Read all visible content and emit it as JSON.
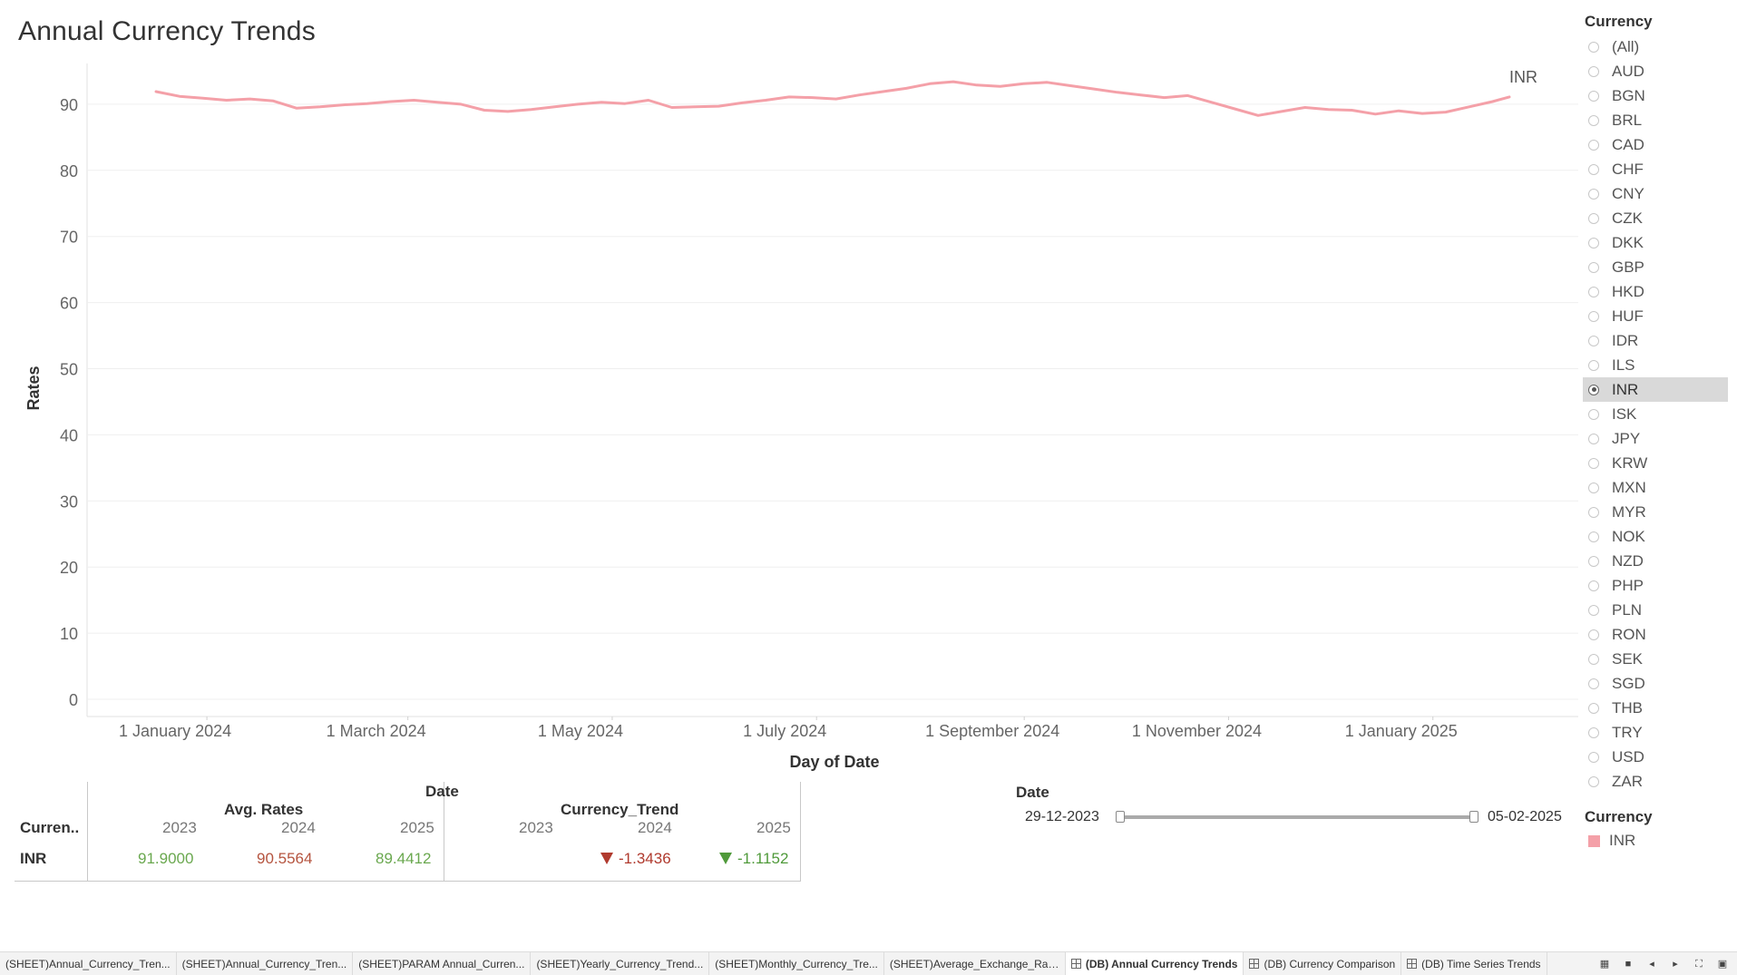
{
  "title": "Annual Currency Trends",
  "chart_data": {
    "type": "line",
    "title": "Annual Currency Trends",
    "xlabel": "Day of Date",
    "ylabel": "Rates",
    "x_tick_labels": [
      "1 January 2024",
      "1 March 2024",
      "1 May 2024",
      "1 July 2024",
      "1 September 2024",
      "1 November 2024",
      "1 January 2025"
    ],
    "x_tick_dates": [
      "2024-01-01",
      "2024-03-01",
      "2024-05-01",
      "2024-07-01",
      "2024-09-01",
      "2024-11-01",
      "2025-01-01"
    ],
    "x_range": [
      "2023-12-29",
      "2025-02-05"
    ],
    "y_ticks": [
      0,
      10,
      20,
      30,
      40,
      50,
      60,
      70,
      80,
      90
    ],
    "ylim": [
      0,
      95
    ],
    "grid": true,
    "series": [
      {
        "name": "INR",
        "color": "#f4a0a8",
        "x": [
          "2023-12-29",
          "2024-01-05",
          "2024-01-12",
          "2024-01-19",
          "2024-01-26",
          "2024-02-02",
          "2024-02-09",
          "2024-02-16",
          "2024-02-23",
          "2024-03-01",
          "2024-03-08",
          "2024-03-15",
          "2024-03-22",
          "2024-03-29",
          "2024-04-05",
          "2024-04-12",
          "2024-04-19",
          "2024-04-26",
          "2024-05-03",
          "2024-05-10",
          "2024-05-17",
          "2024-05-24",
          "2024-05-31",
          "2024-06-07",
          "2024-06-14",
          "2024-06-21",
          "2024-06-28",
          "2024-07-05",
          "2024-07-12",
          "2024-07-19",
          "2024-07-26",
          "2024-08-02",
          "2024-08-09",
          "2024-08-16",
          "2024-08-23",
          "2024-08-30",
          "2024-09-06",
          "2024-09-13",
          "2024-09-20",
          "2024-09-27",
          "2024-10-04",
          "2024-10-11",
          "2024-10-18",
          "2024-10-25",
          "2024-11-01",
          "2024-11-08",
          "2024-11-15",
          "2024-11-22",
          "2024-11-29",
          "2024-12-06",
          "2024-12-13",
          "2024-12-20",
          "2024-12-27",
          "2025-01-03",
          "2025-01-10",
          "2025-01-17",
          "2025-01-24",
          "2025-01-31",
          "2025-02-05"
        ],
        "values": [
          91.9,
          91.2,
          90.9,
          90.6,
          90.8,
          90.5,
          89.4,
          89.6,
          89.9,
          90.1,
          90.4,
          90.6,
          90.3,
          90.0,
          89.1,
          88.9,
          89.2,
          89.6,
          90.0,
          90.3,
          90.1,
          90.6,
          89.5,
          89.6,
          89.7,
          90.2,
          90.6,
          91.1,
          91.0,
          90.8,
          91.4,
          91.9,
          92.4,
          93.1,
          93.4,
          92.9,
          92.7,
          93.1,
          93.3,
          92.8,
          92.3,
          91.8,
          91.4,
          91.0,
          91.3,
          90.3,
          89.3,
          88.3,
          88.9,
          89.5,
          89.2,
          89.1,
          88.5,
          89.0,
          88.6,
          88.8,
          89.6,
          90.4,
          91.1
        ]
      }
    ],
    "end_label": "INR"
  },
  "filters": {
    "currency_heading": "Currency",
    "currency_options": [
      "(All)",
      "AUD",
      "BGN",
      "BRL",
      "CAD",
      "CHF",
      "CNY",
      "CZK",
      "DKK",
      "GBP",
      "HKD",
      "HUF",
      "IDR",
      "ILS",
      "INR",
      "ISK",
      "JPY",
      "KRW",
      "MXN",
      "MYR",
      "NOK",
      "NZD",
      "PHP",
      "PLN",
      "RON",
      "SEK",
      "SGD",
      "THB",
      "TRY",
      "USD",
      "ZAR"
    ],
    "selected": "INR",
    "date_heading": "Date",
    "date_start": "29-12-2023",
    "date_end": "05-02-2025"
  },
  "legend": {
    "heading": "Currency",
    "items": [
      {
        "label": "INR",
        "color": "#f4a0a8"
      }
    ]
  },
  "crosstab": {
    "date_header": "Date",
    "group_avg": "Avg. Rates",
    "group_trend": "Currency_Trend",
    "row_header": "Curren..",
    "years": [
      "2023",
      "2024",
      "2025"
    ],
    "row_label": "INR",
    "avg_values": [
      "91.9000",
      "90.5564",
      "89.4412"
    ],
    "avg_colors": [
      "#6aa84f",
      "#b5543f",
      "#6aa84f"
    ],
    "trend_values": [
      "",
      "-1.3436",
      "-1.1152"
    ],
    "trend_colors": [
      "",
      "#b03a2e",
      "#4f9a3a"
    ]
  },
  "tabs": [
    {
      "label": "(SHEET)Annual_Currency_Tren...",
      "active": false
    },
    {
      "label": "(SHEET)Annual_Currency_Tren...",
      "active": false
    },
    {
      "label": "(SHEET)PARAM Annual_Curren...",
      "active": false
    },
    {
      "label": "(SHEET)Yearly_Currency_Trend...",
      "active": false
    },
    {
      "label": "(SHEET)Monthly_Currency_Tre...",
      "active": false
    },
    {
      "label": "(SHEET)Average_Exchange_Rat...",
      "active": false
    },
    {
      "label": "(DB) Annual Currency Trends",
      "active": true,
      "icon": "dashboard-icon"
    },
    {
      "label": "(DB) Currency Comparison",
      "active": false,
      "icon": "dashboard-icon"
    },
    {
      "label": "(DB) Time Series Trends",
      "active": false,
      "icon": "dashboard-icon"
    }
  ]
}
